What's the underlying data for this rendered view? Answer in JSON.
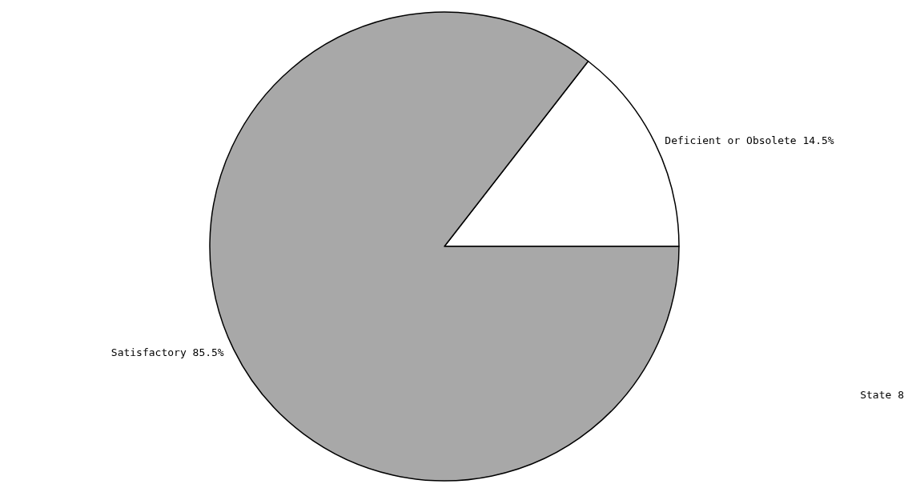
{
  "chart_data": {
    "type": "pie",
    "categories": [
      "Deficient or Obsolete",
      "Satisfactory"
    ],
    "values": [
      14.5,
      85.5
    ],
    "value_labels": [
      "14.5%",
      "85.5%"
    ],
    "colors": [
      "#ffffff",
      "#a8a8a8"
    ],
    "annotations": [
      "State 8"
    ],
    "legend": false
  }
}
